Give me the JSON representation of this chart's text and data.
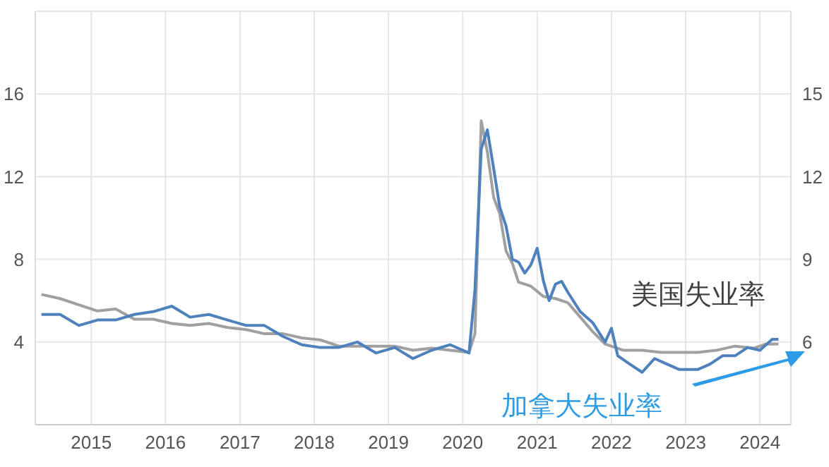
{
  "chart_data": {
    "type": "line",
    "legend": false,
    "grid": true,
    "marker": "none",
    "xlim": [
      "2014-04",
      "2024-06"
    ],
    "xticks": [
      "2015",
      "2016",
      "2017",
      "2018",
      "2019",
      "2020",
      "2021",
      "2022",
      "2023",
      "2024"
    ],
    "ylim": [
      0,
      20
    ],
    "yticks": [
      4,
      8,
      12,
      16
    ],
    "y2lim": [
      3,
      18
    ],
    "y2ticks": [
      6,
      9,
      12,
      15
    ],
    "series": [
      {
        "name": "美国失业率",
        "color": "#a0a0a0",
        "x": [
          "2014-05",
          "2014-08",
          "2014-11",
          "2015-02",
          "2015-05",
          "2015-08",
          "2015-11",
          "2016-02",
          "2016-05",
          "2016-08",
          "2016-11",
          "2017-02",
          "2017-05",
          "2017-08",
          "2017-11",
          "2018-02",
          "2018-05",
          "2018-08",
          "2018-11",
          "2019-02",
          "2019-05",
          "2019-08",
          "2019-11",
          "2020-02",
          "2020-03",
          "2020-04",
          "2020-05",
          "2020-06",
          "2020-07",
          "2020-08",
          "2020-09",
          "2020-10",
          "2020-12",
          "2021-02",
          "2021-04",
          "2021-06",
          "2021-08",
          "2021-10",
          "2021-12",
          "2022-03",
          "2022-06",
          "2022-09",
          "2022-12",
          "2023-03",
          "2023-06",
          "2023-09",
          "2023-12",
          "2024-02",
          "2024-04"
        ],
        "values": [
          6.3,
          6.1,
          5.8,
          5.5,
          5.6,
          5.1,
          5.1,
          4.9,
          4.8,
          4.9,
          4.7,
          4.6,
          4.4,
          4.4,
          4.2,
          4.1,
          3.8,
          3.8,
          3.8,
          3.8,
          3.6,
          3.7,
          3.6,
          3.5,
          4.4,
          14.7,
          13.2,
          11.0,
          10.2,
          8.4,
          7.8,
          6.9,
          6.7,
          6.2,
          6.1,
          5.9,
          5.2,
          4.5,
          3.9,
          3.6,
          3.6,
          3.5,
          3.5,
          3.5,
          3.6,
          3.8,
          3.7,
          3.9,
          3.9
        ]
      },
      {
        "name": "加拿大失业率",
        "color": "#4f81bd",
        "axis": "y2",
        "x": [
          "2014-05",
          "2014-08",
          "2014-11",
          "2015-02",
          "2015-05",
          "2015-08",
          "2015-11",
          "2016-02",
          "2016-05",
          "2016-08",
          "2016-11",
          "2017-02",
          "2017-05",
          "2017-08",
          "2017-11",
          "2018-02",
          "2018-05",
          "2018-08",
          "2018-11",
          "2019-02",
          "2019-05",
          "2019-08",
          "2019-11",
          "2020-02",
          "2020-03",
          "2020-04",
          "2020-05",
          "2020-06",
          "2020-07",
          "2020-08",
          "2020-09",
          "2020-10",
          "2020-11",
          "2020-12",
          "2021-01",
          "2021-02",
          "2021-03",
          "2021-04",
          "2021-05",
          "2021-06",
          "2021-08",
          "2021-10",
          "2021-12",
          "2022-01",
          "2022-02",
          "2022-04",
          "2022-06",
          "2022-08",
          "2022-10",
          "2022-12",
          "2023-03",
          "2023-05",
          "2023-07",
          "2023-09",
          "2023-11",
          "2024-01",
          "2024-03",
          "2024-04"
        ],
        "values": [
          7.0,
          7.0,
          6.6,
          6.8,
          6.8,
          7.0,
          7.1,
          7.3,
          6.9,
          7.0,
          6.8,
          6.6,
          6.6,
          6.2,
          5.9,
          5.8,
          5.8,
          6.0,
          5.6,
          5.8,
          5.4,
          5.7,
          5.9,
          5.6,
          7.9,
          13.0,
          13.7,
          12.3,
          10.9,
          10.2,
          9.0,
          8.9,
          8.5,
          8.8,
          9.4,
          8.2,
          7.5,
          8.1,
          8.2,
          7.8,
          7.1,
          6.7,
          6.0,
          6.5,
          5.5,
          5.2,
          4.9,
          5.4,
          5.2,
          5.0,
          5.0,
          5.2,
          5.5,
          5.5,
          5.8,
          5.7,
          6.1,
          6.1
        ]
      }
    ]
  }
}
